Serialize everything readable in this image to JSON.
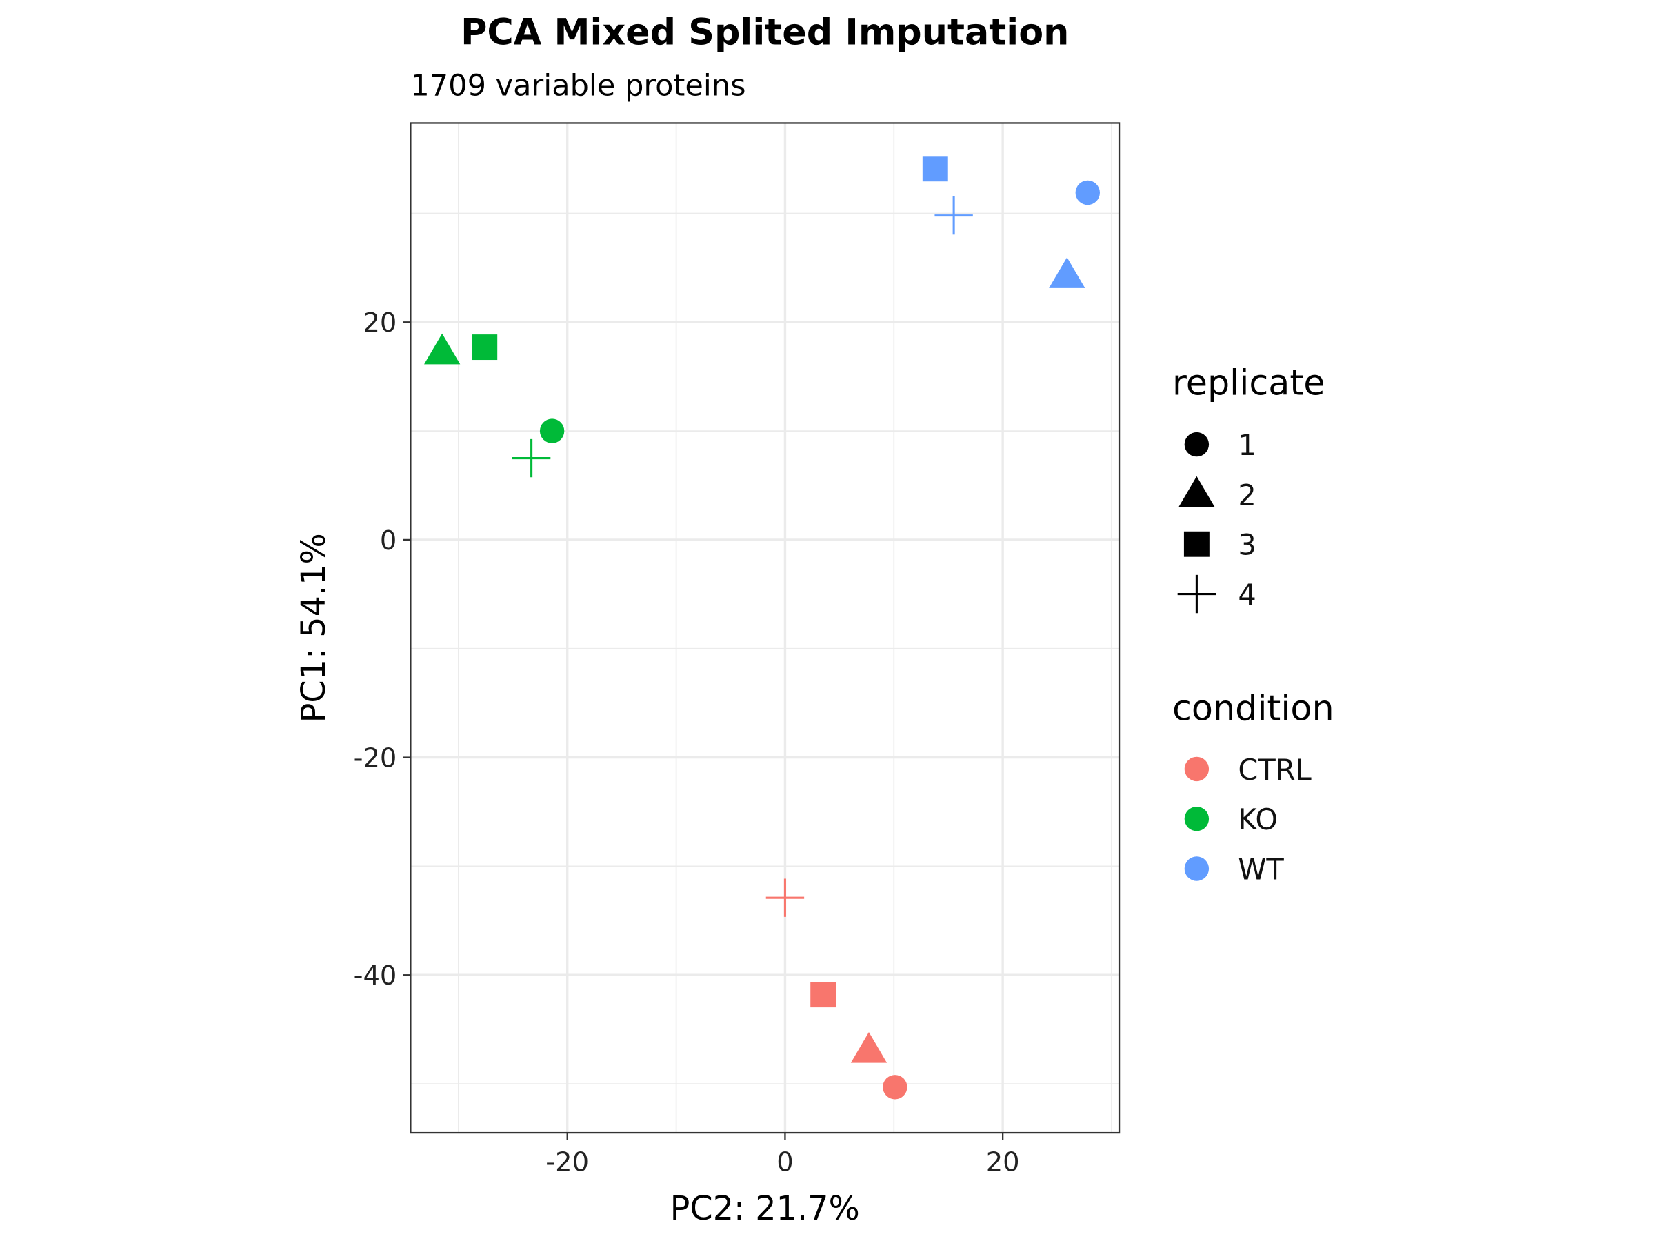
{
  "chart_data": {
    "type": "scatter",
    "title": "PCA Mixed Splited Imputation",
    "subtitle": "1709 variable proteins",
    "xlabel": "PC2: 21.7%",
    "ylabel": "PC1: 54.1%",
    "xlim": [
      -34.4,
      30.7
    ],
    "ylim": [
      -54.5,
      38.3
    ],
    "x_ticks": [
      -20,
      0,
      20
    ],
    "y_ticks": [
      -40,
      -20,
      0,
      20
    ],
    "x_tick_labels": [
      "-20",
      "0",
      "20"
    ],
    "y_tick_labels": [
      "-40",
      "-20",
      "0",
      "20"
    ],
    "grid": true,
    "legend_position": "right",
    "legends": {
      "shape": {
        "title": "replicate",
        "entries": [
          {
            "label": "1",
            "shape": "circle"
          },
          {
            "label": "2",
            "shape": "triangle"
          },
          {
            "label": "3",
            "shape": "square"
          },
          {
            "label": "4",
            "shape": "plus"
          }
        ]
      },
      "color": {
        "title": "condition",
        "entries": [
          {
            "label": "CTRL",
            "color": "#F8766D"
          },
          {
            "label": "KO",
            "color": "#00BA38"
          },
          {
            "label": "WT",
            "color": "#619CFF"
          }
        ]
      }
    },
    "points": [
      {
        "condition": "WT",
        "replicate": "1",
        "x": 27.8,
        "y": 31.9
      },
      {
        "condition": "WT",
        "replicate": "2",
        "x": 25.9,
        "y": 24.3
      },
      {
        "condition": "WT",
        "replicate": "3",
        "x": 13.8,
        "y": 34.1
      },
      {
        "condition": "WT",
        "replicate": "4",
        "x": 15.5,
        "y": 29.8
      },
      {
        "condition": "KO",
        "replicate": "1",
        "x": -21.4,
        "y": 10.0
      },
      {
        "condition": "KO",
        "replicate": "2",
        "x": -31.5,
        "y": 17.3
      },
      {
        "condition": "KO",
        "replicate": "3",
        "x": -27.6,
        "y": 17.7
      },
      {
        "condition": "KO",
        "replicate": "4",
        "x": -23.3,
        "y": 7.5
      },
      {
        "condition": "CTRL",
        "replicate": "1",
        "x": 10.1,
        "y": -50.3
      },
      {
        "condition": "CTRL",
        "replicate": "2",
        "x": 7.7,
        "y": -46.9
      },
      {
        "condition": "CTRL",
        "replicate": "3",
        "x": 3.5,
        "y": -41.8
      },
      {
        "condition": "CTRL",
        "replicate": "4",
        "x": 0.0,
        "y": -32.9
      }
    ]
  }
}
